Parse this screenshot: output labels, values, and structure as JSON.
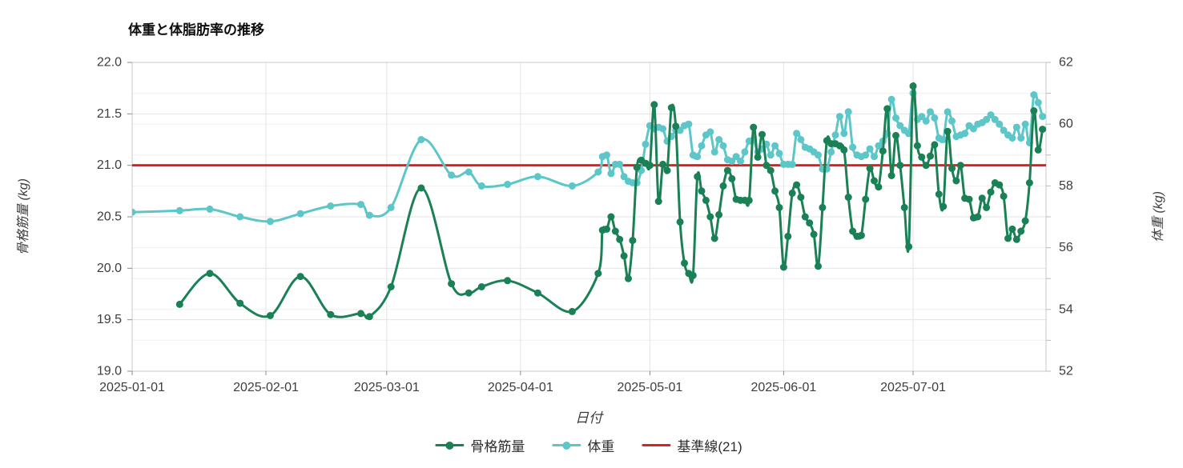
{
  "chart_data": {
    "type": "line",
    "title": "体重と体脂肪率の推移",
    "x_label": "日付",
    "legend_position": "bottom",
    "grid": true,
    "x_ticks": [
      "2025-01-01",
      "2025-02-01",
      "2025-03-01",
      "2025-04-01",
      "2025-05-01",
      "2025-06-01",
      "2025-07-01"
    ],
    "y_left": {
      "label": "骨格筋量 (kg)",
      "range": [
        19.0,
        22.0
      ],
      "tick_step": 0.5,
      "tick_labels": [
        "22.0",
        "21.5",
        "21.0",
        "20.5",
        "20.0",
        "19.5",
        "19.0"
      ]
    },
    "y_right": {
      "label": "体重 (kg)",
      "range": [
        52,
        62
      ],
      "minor_tick_step": 1,
      "tick_labels": [
        "62",
        "60",
        "58",
        "56",
        "54",
        "52"
      ]
    },
    "reference_line": {
      "name": "基準線(21)",
      "axis": "left",
      "value": 21.0,
      "color": "#e02020"
    },
    "x": [
      "2025-01-01",
      "2025-01-12",
      "2025-01-19",
      "2025-01-26",
      "2025-02-02",
      "2025-02-09",
      "2025-02-16",
      "2025-02-23",
      "2025-02-25",
      "2025-03-02",
      "2025-03-09",
      "2025-03-16",
      "2025-03-20",
      "2025-03-23",
      "2025-03-29",
      "2025-04-05",
      "2025-04-13",
      "2025-04-19",
      "2025-04-20",
      "2025-04-21",
      "2025-04-22",
      "2025-04-23",
      "2025-04-24",
      "2025-04-25",
      "2025-04-26",
      "2025-04-27",
      "2025-04-28",
      "2025-04-29",
      "2025-04-30",
      "2025-05-01",
      "2025-05-02",
      "2025-05-03",
      "2025-05-04",
      "2025-05-05",
      "2025-05-06",
      "2025-05-07",
      "2025-05-08",
      "2025-05-09",
      "2025-05-10",
      "2025-05-11",
      "2025-05-12",
      "2025-05-13",
      "2025-05-14",
      "2025-05-15",
      "2025-05-16",
      "2025-05-17",
      "2025-05-18",
      "2025-05-19",
      "2025-05-20",
      "2025-05-21",
      "2025-05-22",
      "2025-05-23",
      "2025-05-24",
      "2025-05-25",
      "2025-05-26",
      "2025-05-27",
      "2025-05-28",
      "2025-05-29",
      "2025-05-30",
      "2025-05-31",
      "2025-06-01",
      "2025-06-02",
      "2025-06-03",
      "2025-06-04",
      "2025-06-05",
      "2025-06-06",
      "2025-06-07",
      "2025-06-08",
      "2025-06-09",
      "2025-06-10",
      "2025-06-11",
      "2025-06-12",
      "2025-06-13",
      "2025-06-14",
      "2025-06-15",
      "2025-06-16",
      "2025-06-17",
      "2025-06-18",
      "2025-06-19",
      "2025-06-20",
      "2025-06-21",
      "2025-06-22",
      "2025-06-23",
      "2025-06-24",
      "2025-06-25",
      "2025-06-26",
      "2025-06-27",
      "2025-06-28",
      "2025-06-29",
      "2025-06-30",
      "2025-07-01",
      "2025-07-02",
      "2025-07-03",
      "2025-07-04",
      "2025-07-05",
      "2025-07-06",
      "2025-07-07",
      "2025-07-08",
      "2025-07-09",
      "2025-07-10",
      "2025-07-11",
      "2025-07-12",
      "2025-07-13",
      "2025-07-14",
      "2025-07-15",
      "2025-07-16",
      "2025-07-17",
      "2025-07-18",
      "2025-07-19",
      "2025-07-20",
      "2025-07-21",
      "2025-07-22",
      "2025-07-23",
      "2025-07-24",
      "2025-07-25",
      "2025-07-26",
      "2025-07-27",
      "2025-07-28",
      "2025-07-29",
      "2025-07-30",
      "2025-07-31"
    ],
    "series": [
      {
        "name": "骨格筋量",
        "axis": "left",
        "color": "#1a8055",
        "values": [
          null,
          19.65,
          19.95,
          19.66,
          19.54,
          19.92,
          19.55,
          19.56,
          19.53,
          19.82,
          20.78,
          19.85,
          19.76,
          19.82,
          19.88,
          19.76,
          19.58,
          19.95,
          20.37,
          20.38,
          20.5,
          20.36,
          20.28,
          20.12,
          19.9,
          20.27,
          20.98,
          21.05,
          21.02,
          21.0,
          21.59,
          20.65,
          21.01,
          20.95,
          21.56,
          21.38,
          20.45,
          20.05,
          19.95,
          19.93,
          20.89,
          20.75,
          20.66,
          20.5,
          20.29,
          20.52,
          20.8,
          20.95,
          20.87,
          20.67,
          20.66,
          20.66,
          20.66,
          21.37,
          21.08,
          21.3,
          21.0,
          20.95,
          20.75,
          20.59,
          20.01,
          20.31,
          20.73,
          20.81,
          20.69,
          20.5,
          20.44,
          20.33,
          20.02,
          20.59,
          21.24,
          21.21,
          21.21,
          21.19,
          21.15,
          20.69,
          20.36,
          20.31,
          20.32,
          20.67,
          20.97,
          20.85,
          20.79,
          21.14,
          21.55,
          20.9,
          21.29,
          21.0,
          20.59,
          20.21,
          21.77,
          21.19,
          21.08,
          21.0,
          21.09,
          21.2,
          20.72,
          20.6,
          21.33,
          20.97,
          20.85,
          21.0,
          20.68,
          20.67,
          20.49,
          20.5,
          20.68,
          20.59,
          20.74,
          20.83,
          20.81,
          20.7,
          20.29,
          20.38,
          20.28,
          20.36,
          20.46,
          20.83,
          21.53,
          21.15,
          21.35
        ]
      },
      {
        "name": "体重",
        "axis": "right",
        "color": "#5cc6c8",
        "values": [
          57.15,
          57.2,
          57.25,
          57.0,
          56.85,
          57.1,
          57.35,
          57.4,
          57.05,
          57.3,
          59.5,
          58.35,
          58.45,
          58.0,
          58.05,
          58.3,
          58.0,
          58.45,
          58.95,
          59.0,
          58.4,
          58.7,
          58.7,
          58.3,
          58.15,
          58.1,
          58.1,
          58.5,
          59.35,
          59.95,
          59.85,
          59.9,
          59.85,
          59.45,
          59.6,
          59.8,
          59.8,
          59.95,
          60.0,
          59.0,
          58.95,
          59.3,
          59.65,
          59.75,
          59.1,
          59.5,
          59.3,
          58.85,
          58.8,
          58.95,
          58.8,
          59.1,
          59.45,
          59.5,
          59.1,
          59.2,
          59.35,
          59.0,
          59.3,
          59.05,
          58.7,
          58.7,
          58.7,
          59.7,
          59.5,
          59.25,
          59.2,
          59.1,
          59.0,
          58.55,
          58.55,
          59.1,
          59.65,
          60.25,
          59.7,
          60.4,
          59.25,
          59.0,
          58.95,
          59.0,
          59.2,
          58.95,
          59.3,
          59.45,
          59.7,
          60.8,
          60.2,
          59.95,
          59.8,
          59.7,
          61.0,
          60.15,
          60.25,
          60.1,
          60.4,
          60.2,
          59.55,
          59.5,
          60.4,
          60.1,
          59.6,
          59.65,
          59.7,
          59.95,
          59.85,
          60.0,
          60.05,
          60.15,
          60.3,
          60.15,
          60.0,
          59.8,
          59.65,
          59.55,
          59.9,
          59.55,
          60.0,
          59.4,
          60.95,
          60.7,
          60.25
        ]
      }
    ]
  }
}
